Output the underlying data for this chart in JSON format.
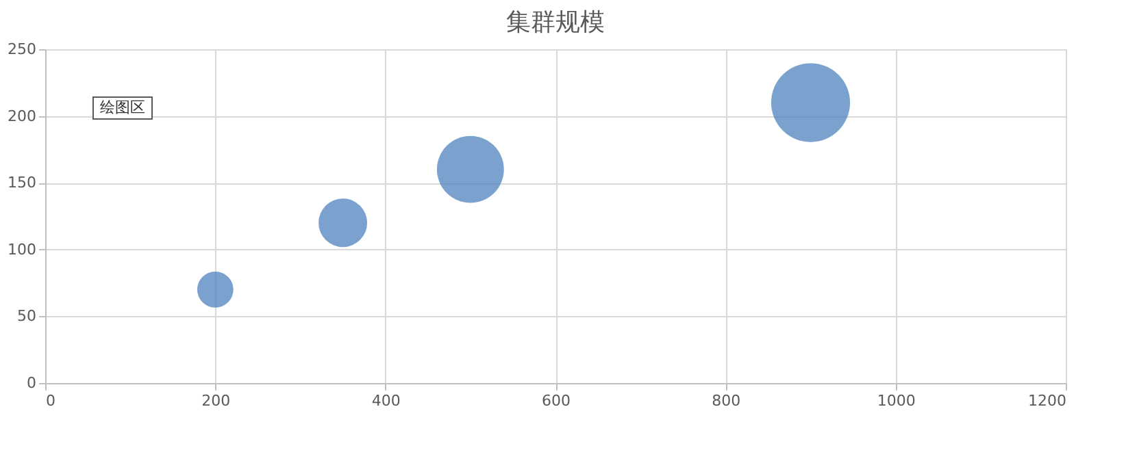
{
  "chart_data": {
    "type": "bubble",
    "title": "集群规模",
    "x": [
      200,
      350,
      500,
      900
    ],
    "values": [
      70,
      120,
      160,
      210
    ],
    "sizes": [
      0.21,
      0.38,
      0.72,
      1
    ],
    "color": "#4f81bd",
    "xlim": [
      0,
      1200
    ],
    "xticks": [
      0,
      200,
      400,
      600,
      800,
      1000,
      1200
    ],
    "ylim": [
      0,
      250
    ],
    "yticks": [
      0,
      50,
      100,
      150,
      200,
      250
    ],
    "grid": true,
    "legend": false,
    "annotations": [
      "绘图区"
    ]
  }
}
